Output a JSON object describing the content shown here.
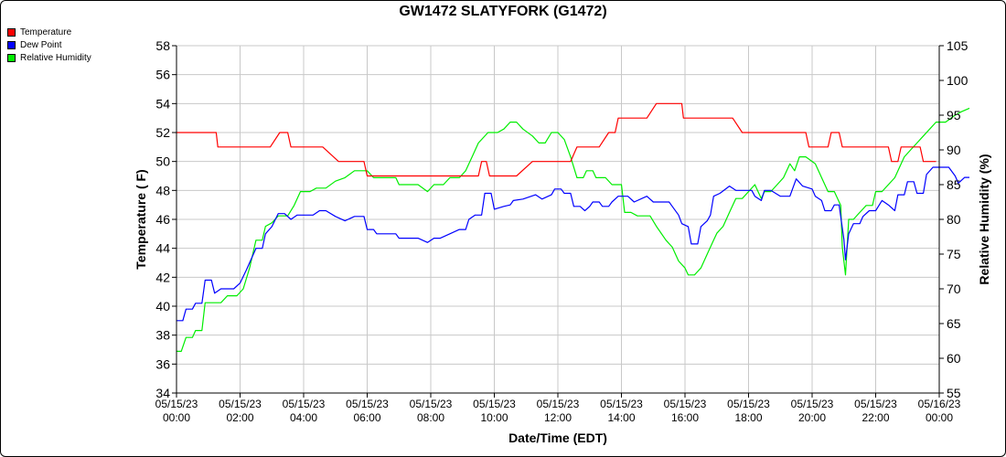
{
  "chart_data": {
    "type": "line",
    "title": "GW1472 SLATYFORK (G1472)",
    "xlabel": "Date/Time (EDT)",
    "ylabel": "Temperature ( F)",
    "y2label": "Relative Humidity (%)",
    "xlim": [
      0,
      24
    ],
    "ylim": [
      34,
      58
    ],
    "y2lim": [
      55,
      105
    ],
    "grid": true,
    "legend": "top-left",
    "x_ticks": [
      {
        "date": "05/15/23",
        "time": "00:00"
      },
      {
        "date": "05/15/23",
        "time": "02:00"
      },
      {
        "date": "05/15/23",
        "time": "04:00"
      },
      {
        "date": "05/15/23",
        "time": "06:00"
      },
      {
        "date": "05/15/23",
        "time": "08:00"
      },
      {
        "date": "05/15/23",
        "time": "10:00"
      },
      {
        "date": "05/15/23",
        "time": "12:00"
      },
      {
        "date": "05/15/23",
        "time": "14:00"
      },
      {
        "date": "05/15/23",
        "time": "16:00"
      },
      {
        "date": "05/15/23",
        "time": "18:00"
      },
      {
        "date": "05/15/23",
        "time": "20:00"
      },
      {
        "date": "05/15/23",
        "time": "22:00"
      },
      {
        "date": "05/16/23",
        "time": "00:00"
      }
    ],
    "y_ticks": [
      "34",
      "36",
      "38",
      "40",
      "42",
      "44",
      "46",
      "48",
      "50",
      "52",
      "54",
      "56",
      "58"
    ],
    "y2_ticks": [
      "55",
      "60",
      "65",
      "70",
      "75",
      "80",
      "85",
      "90",
      "95",
      "100",
      "105"
    ],
    "series": [
      {
        "name": "Temperature",
        "color": "#ff0000",
        "axis": "left",
        "points": [
          [
            0,
            52
          ],
          [
            1.25,
            52
          ],
          [
            1.3,
            51
          ],
          [
            2.95,
            51
          ],
          [
            3.25,
            52
          ],
          [
            3.5,
            52
          ],
          [
            3.6,
            51
          ],
          [
            4.6,
            51
          ],
          [
            5.1,
            50
          ],
          [
            5.9,
            50
          ],
          [
            6.0,
            49
          ],
          [
            9.5,
            49
          ],
          [
            9.6,
            50
          ],
          [
            9.75,
            50
          ],
          [
            9.85,
            49
          ],
          [
            10.7,
            49
          ],
          [
            11.2,
            50
          ],
          [
            12.4,
            50
          ],
          [
            12.6,
            51
          ],
          [
            13.3,
            51
          ],
          [
            13.6,
            52
          ],
          [
            13.8,
            52
          ],
          [
            13.9,
            53
          ],
          [
            14.8,
            53
          ],
          [
            15.1,
            54
          ],
          [
            15.9,
            54
          ],
          [
            15.95,
            53
          ],
          [
            17.5,
            53
          ],
          [
            17.8,
            52
          ],
          [
            19.8,
            52
          ],
          [
            19.9,
            51
          ],
          [
            20.5,
            51
          ],
          [
            20.6,
            52
          ],
          [
            20.85,
            52
          ],
          [
            20.95,
            51
          ],
          [
            22.4,
            51
          ],
          [
            22.5,
            50
          ],
          [
            22.7,
            50
          ],
          [
            22.8,
            51
          ],
          [
            23.4,
            51
          ],
          [
            23.5,
            50
          ],
          [
            23.9,
            50
          ]
        ]
      },
      {
        "name": "Dew Point",
        "color": "#0000ff",
        "axis": "left",
        "points": [
          [
            0,
            39
          ],
          [
            0.2,
            39
          ],
          [
            0.3,
            39.8
          ],
          [
            0.5,
            39.8
          ],
          [
            0.6,
            40.2
          ],
          [
            0.8,
            40.2
          ],
          [
            0.9,
            41.8
          ],
          [
            1.1,
            41.8
          ],
          [
            1.2,
            40.9
          ],
          [
            1.4,
            41.2
          ],
          [
            1.8,
            41.2
          ],
          [
            2.0,
            41.6
          ],
          [
            2.2,
            42.5
          ],
          [
            2.5,
            44.0
          ],
          [
            2.7,
            44.0
          ],
          [
            2.8,
            45.0
          ],
          [
            3.0,
            45.5
          ],
          [
            3.2,
            46.4
          ],
          [
            3.4,
            46.4
          ],
          [
            3.6,
            46.0
          ],
          [
            3.8,
            46.3
          ],
          [
            4.3,
            46.3
          ],
          [
            4.5,
            46.6
          ],
          [
            4.7,
            46.6
          ],
          [
            5.0,
            46.2
          ],
          [
            5.3,
            45.9
          ],
          [
            5.6,
            46.2
          ],
          [
            5.9,
            46.2
          ],
          [
            6.0,
            45.3
          ],
          [
            6.2,
            45.3
          ],
          [
            6.3,
            45.0
          ],
          [
            6.9,
            45.0
          ],
          [
            7.0,
            44.7
          ],
          [
            7.6,
            44.7
          ],
          [
            7.9,
            44.4
          ],
          [
            8.1,
            44.7
          ],
          [
            8.3,
            44.7
          ],
          [
            8.6,
            45.0
          ],
          [
            8.9,
            45.3
          ],
          [
            9.1,
            45.3
          ],
          [
            9.2,
            46.0
          ],
          [
            9.4,
            46.3
          ],
          [
            9.6,
            46.3
          ],
          [
            9.7,
            47.8
          ],
          [
            9.9,
            47.8
          ],
          [
            10.0,
            46.7
          ],
          [
            10.3,
            46.9
          ],
          [
            10.5,
            47.0
          ],
          [
            10.6,
            47.3
          ],
          [
            10.9,
            47.4
          ],
          [
            11.3,
            47.7
          ],
          [
            11.5,
            47.4
          ],
          [
            11.8,
            47.7
          ],
          [
            11.9,
            48.1
          ],
          [
            12.1,
            48.1
          ],
          [
            12.2,
            47.8
          ],
          [
            12.4,
            47.8
          ],
          [
            12.5,
            46.9
          ],
          [
            12.7,
            46.9
          ],
          [
            12.85,
            46.6
          ],
          [
            13.0,
            46.9
          ],
          [
            13.1,
            47.2
          ],
          [
            13.3,
            47.2
          ],
          [
            13.4,
            46.9
          ],
          [
            13.6,
            46.9
          ],
          [
            13.7,
            47.2
          ],
          [
            13.9,
            47.6
          ],
          [
            14.2,
            47.6
          ],
          [
            14.4,
            47.2
          ],
          [
            14.8,
            47.6
          ],
          [
            15.0,
            47.2
          ],
          [
            15.5,
            47.2
          ],
          [
            15.6,
            46.9
          ],
          [
            15.8,
            46.3
          ],
          [
            15.9,
            45.7
          ],
          [
            16.1,
            45.5
          ],
          [
            16.2,
            44.3
          ],
          [
            16.4,
            44.3
          ],
          [
            16.5,
            45.5
          ],
          [
            16.7,
            45.9
          ],
          [
            16.8,
            46.3
          ],
          [
            16.9,
            47.6
          ],
          [
            17.1,
            47.8
          ],
          [
            17.4,
            48.3
          ],
          [
            17.6,
            48.0
          ],
          [
            18.1,
            48.0
          ],
          [
            18.2,
            47.6
          ],
          [
            18.4,
            47.3
          ],
          [
            18.5,
            48.0
          ],
          [
            18.7,
            48.0
          ],
          [
            19.0,
            47.6
          ],
          [
            19.3,
            47.6
          ],
          [
            19.5,
            48.8
          ],
          [
            19.7,
            48.3
          ],
          [
            20.0,
            48.1
          ],
          [
            20.1,
            47.6
          ],
          [
            20.3,
            47.3
          ],
          [
            20.4,
            46.6
          ],
          [
            20.6,
            46.6
          ],
          [
            20.7,
            47.0
          ],
          [
            20.85,
            47.0
          ],
          [
            21.0,
            44.6
          ],
          [
            21.05,
            43.2
          ],
          [
            21.15,
            45.0
          ],
          [
            21.3,
            45.7
          ],
          [
            21.5,
            45.7
          ],
          [
            21.6,
            46.2
          ],
          [
            21.8,
            46.6
          ],
          [
            22.0,
            46.6
          ],
          [
            22.2,
            47.3
          ],
          [
            22.4,
            47.0
          ],
          [
            22.6,
            46.6
          ],
          [
            22.7,
            47.7
          ],
          [
            22.9,
            47.7
          ],
          [
            23.0,
            48.6
          ],
          [
            23.2,
            48.6
          ],
          [
            23.3,
            47.8
          ],
          [
            23.5,
            47.8
          ],
          [
            23.6,
            49.1
          ],
          [
            23.8,
            49.6
          ],
          [
            24.3,
            49.6
          ],
          [
            24.5,
            49.0
          ],
          [
            24.6,
            48.5
          ],
          [
            24.8,
            48.9
          ],
          [
            24.95,
            48.9
          ]
        ]
      },
      {
        "name": "Relative Humidity",
        "color": "#00ee00",
        "axis": "right",
        "points": [
          [
            0,
            61
          ],
          [
            0.15,
            61
          ],
          [
            0.3,
            63
          ],
          [
            0.5,
            63
          ],
          [
            0.6,
            64
          ],
          [
            0.8,
            64
          ],
          [
            0.9,
            68
          ],
          [
            1.1,
            68
          ],
          [
            1.4,
            68
          ],
          [
            1.6,
            69
          ],
          [
            1.9,
            69
          ],
          [
            2.1,
            70
          ],
          [
            2.3,
            73
          ],
          [
            2.5,
            77
          ],
          [
            2.7,
            77
          ],
          [
            2.8,
            79
          ],
          [
            3.0,
            79.5
          ],
          [
            3.2,
            80.5
          ],
          [
            3.5,
            80.5
          ],
          [
            3.7,
            82
          ],
          [
            3.9,
            84
          ],
          [
            4.2,
            84
          ],
          [
            4.4,
            84.5
          ],
          [
            4.7,
            84.5
          ],
          [
            5.0,
            85.5
          ],
          [
            5.3,
            86
          ],
          [
            5.6,
            87
          ],
          [
            6.0,
            87
          ],
          [
            6.2,
            86
          ],
          [
            6.9,
            86
          ],
          [
            7.0,
            85
          ],
          [
            7.6,
            85
          ],
          [
            7.9,
            84
          ],
          [
            8.1,
            85
          ],
          [
            8.4,
            85
          ],
          [
            8.6,
            86
          ],
          [
            8.9,
            86
          ],
          [
            9.1,
            87
          ],
          [
            9.3,
            89
          ],
          [
            9.5,
            91
          ],
          [
            9.6,
            91.5
          ],
          [
            9.8,
            92.5
          ],
          [
            10.1,
            92.5
          ],
          [
            10.3,
            93
          ],
          [
            10.5,
            94
          ],
          [
            10.7,
            94
          ],
          [
            10.9,
            93
          ],
          [
            11.2,
            92
          ],
          [
            11.4,
            91
          ],
          [
            11.6,
            91
          ],
          [
            11.8,
            92.5
          ],
          [
            12.0,
            92.5
          ],
          [
            12.2,
            91.5
          ],
          [
            12.4,
            89
          ],
          [
            12.6,
            86
          ],
          [
            12.8,
            86
          ],
          [
            12.9,
            87
          ],
          [
            13.1,
            87
          ],
          [
            13.2,
            86
          ],
          [
            13.5,
            86
          ],
          [
            13.7,
            85
          ],
          [
            14.0,
            85
          ],
          [
            14.1,
            81
          ],
          [
            14.3,
            81
          ],
          [
            14.5,
            80.5
          ],
          [
            14.9,
            80.5
          ],
          [
            15.1,
            79
          ],
          [
            15.4,
            77
          ],
          [
            15.6,
            76
          ],
          [
            15.8,
            74
          ],
          [
            16.0,
            73
          ],
          [
            16.1,
            72
          ],
          [
            16.3,
            72
          ],
          [
            16.5,
            73
          ],
          [
            16.7,
            75
          ],
          [
            16.9,
            77
          ],
          [
            17.0,
            78
          ],
          [
            17.2,
            79
          ],
          [
            17.4,
            81
          ],
          [
            17.6,
            83
          ],
          [
            17.8,
            83
          ],
          [
            18.0,
            84
          ],
          [
            18.2,
            85
          ],
          [
            18.3,
            84
          ],
          [
            18.4,
            83
          ],
          [
            18.5,
            84
          ],
          [
            18.7,
            84
          ],
          [
            18.9,
            85
          ],
          [
            19.1,
            86
          ],
          [
            19.3,
            88
          ],
          [
            19.45,
            87
          ],
          [
            19.6,
            89
          ],
          [
            19.8,
            89
          ],
          [
            20.1,
            88
          ],
          [
            20.3,
            86
          ],
          [
            20.5,
            84
          ],
          [
            20.7,
            84
          ],
          [
            20.9,
            82
          ],
          [
            20.95,
            76
          ],
          [
            21.05,
            72
          ],
          [
            21.15,
            80
          ],
          [
            21.3,
            80
          ],
          [
            21.5,
            81
          ],
          [
            21.7,
            82
          ],
          [
            21.9,
            82
          ],
          [
            22.0,
            84
          ],
          [
            22.2,
            84
          ],
          [
            22.4,
            85
          ],
          [
            22.6,
            86
          ],
          [
            22.8,
            88
          ],
          [
            22.9,
            89
          ],
          [
            23.1,
            90
          ],
          [
            23.3,
            91
          ],
          [
            23.5,
            92
          ],
          [
            23.7,
            93
          ],
          [
            23.9,
            94
          ],
          [
            24.2,
            94
          ],
          [
            24.5,
            95
          ],
          [
            24.7,
            95.5
          ],
          [
            24.95,
            96
          ]
        ]
      }
    ]
  }
}
